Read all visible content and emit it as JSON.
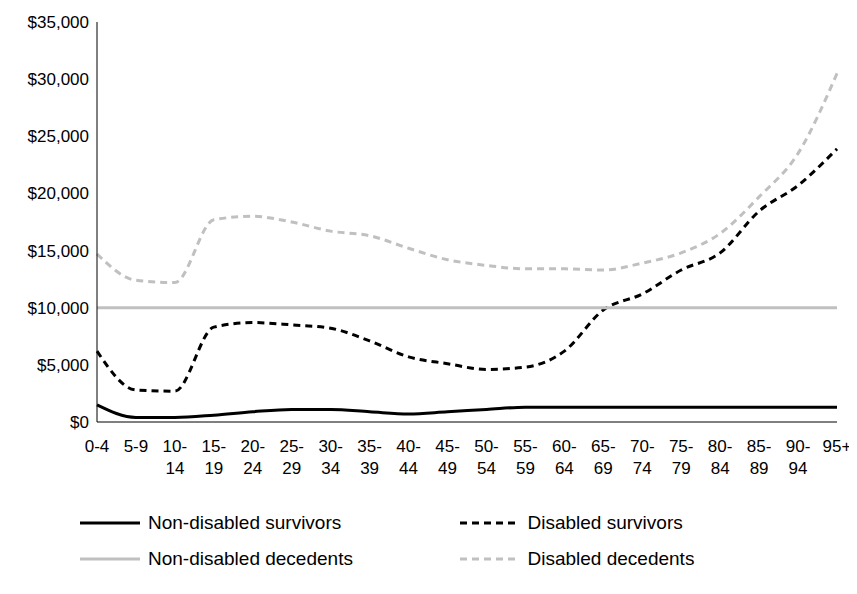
{
  "chart_data": {
    "type": "line",
    "categories": [
      "0-4",
      "5-9",
      "10-14",
      "15-19",
      "20-24",
      "25-29",
      "30-34",
      "35-39",
      "40-44",
      "45-49",
      "50-54",
      "55-59",
      "60-64",
      "65-69",
      "70-74",
      "75-79",
      "80-84",
      "85-89",
      "90-94",
      "95+"
    ],
    "series": [
      {
        "name": "Non-disabled survivors",
        "color": "#000000",
        "line_style": "solid",
        "values": [
          1500,
          400,
          400,
          600,
          900,
          1100,
          1100,
          900,
          700,
          900,
          1100,
          1300,
          1300,
          1300,
          1300,
          1300,
          1300,
          1300,
          1300,
          1300
        ]
      },
      {
        "name": "Disabled survivors",
        "color": "#000000",
        "line_style": "dashed",
        "values": [
          6200,
          2800,
          2700,
          8300,
          8700,
          8500,
          8200,
          7100,
          5700,
          5100,
          4600,
          4800,
          6200,
          9800,
          11200,
          13300,
          14800,
          18450,
          20700,
          23900
        ]
      },
      {
        "name": "Non-disabled decedents",
        "color": "#c0c0c0",
        "line_style": "solid",
        "values": [
          10000,
          10000,
          10000,
          10000,
          10000,
          10000,
          10000,
          10000,
          10000,
          10000,
          10000,
          10000,
          10000,
          10000,
          10000,
          10000,
          10000,
          10000,
          10000,
          10000
        ]
      },
      {
        "name": "Disabled decedents",
        "color": "#c0c0c0",
        "line_style": "dashed",
        "values": [
          14700,
          12400,
          12200,
          17700,
          18000,
          17500,
          16700,
          16300,
          15200,
          14200,
          13700,
          13400,
          13400,
          13300,
          13900,
          14800,
          16500,
          19700,
          23500,
          30500
        ]
      }
    ],
    "ylim": [
      0,
      35000
    ],
    "yticks": [
      {
        "value": 0,
        "label": "$0"
      },
      {
        "value": 5000,
        "label": "$5,000"
      },
      {
        "value": 10000,
        "label": "$10,000"
      },
      {
        "value": 15000,
        "label": "$15,000"
      },
      {
        "value": 20000,
        "label": "$20,000"
      },
      {
        "value": 25000,
        "label": "$25,000"
      },
      {
        "value": 30000,
        "label": "$30,000"
      },
      {
        "value": 35000,
        "label": "$35,000"
      }
    ],
    "grid": false,
    "legend": "bottom"
  }
}
